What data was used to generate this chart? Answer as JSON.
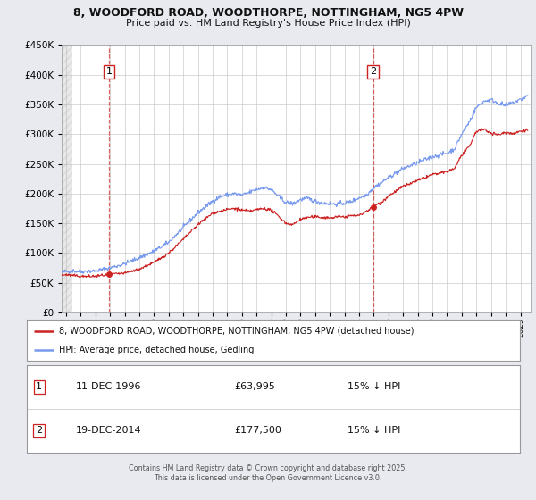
{
  "title1": "8, WOODFORD ROAD, WOODTHORPE, NOTTINGHAM, NG5 4PW",
  "title2": "Price paid vs. HM Land Registry's House Price Index (HPI)",
  "ylim": [
    0,
    450000
  ],
  "yticks": [
    0,
    50000,
    100000,
    150000,
    200000,
    250000,
    300000,
    350000,
    400000,
    450000
  ],
  "xlim_start": 1993.7,
  "xlim_end": 2025.7,
  "bg_color": "#e8eaf0",
  "plot_bg": "#ffffff",
  "hpi_color": "#7799ee",
  "price_color": "#cc2222",
  "vline_color": "#cc2222",
  "marker1_x": 1996.94,
  "marker1_y": 63995,
  "marker2_x": 2014.96,
  "marker2_y": 177500,
  "legend1": "8, WOODFORD ROAD, WOODTHORPE, NOTTINGHAM, NG5 4PW (detached house)",
  "legend2": "HPI: Average price, detached house, Gedling",
  "table_row1": [
    "1",
    "11-DEC-1996",
    "£63,995",
    "15% ↓ HPI"
  ],
  "table_row2": [
    "2",
    "19-DEC-2014",
    "£177,500",
    "15% ↓ HPI"
  ],
  "footer": "Contains HM Land Registry data © Crown copyright and database right 2025.\nThis data is licensed under the Open Government Licence v3.0."
}
